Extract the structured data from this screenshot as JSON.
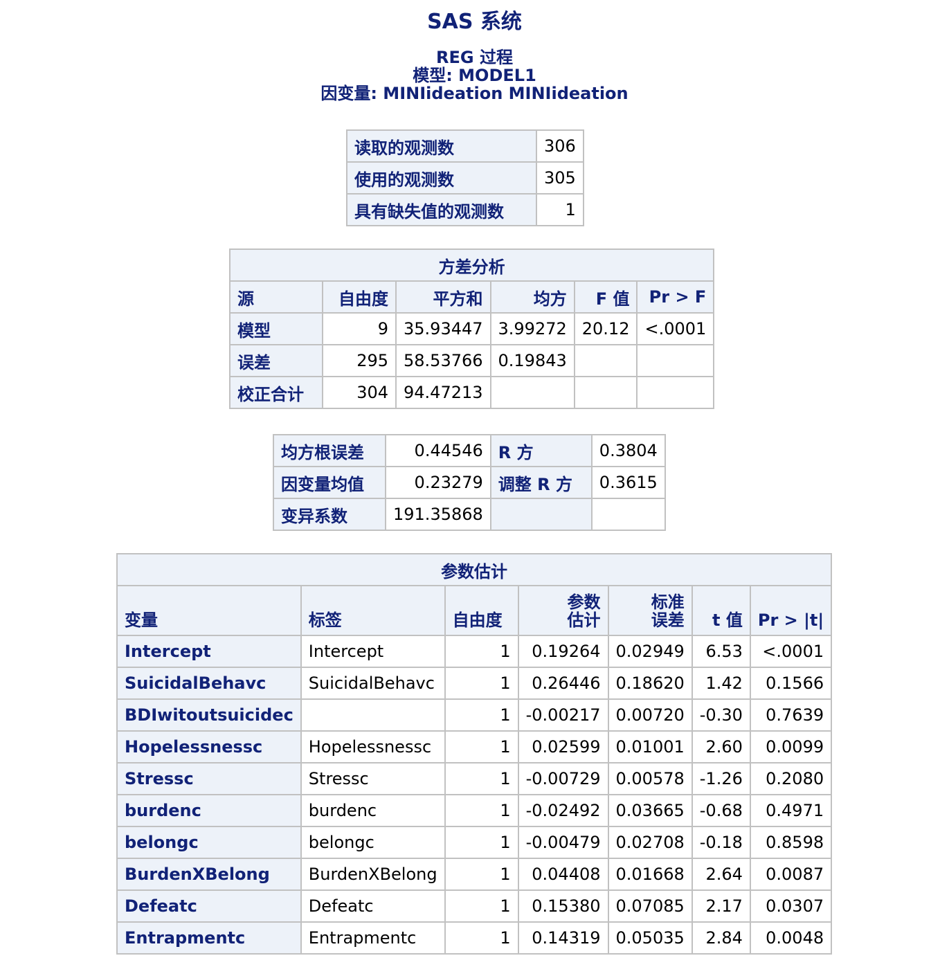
{
  "title": "SAS 系统",
  "subtitle1": "REG 过程",
  "subtitle2": "模型: MODEL1",
  "subtitle3": "因变量: MINIideation MINIideation",
  "obs": {
    "rows": [
      {
        "label": "读取的观测数",
        "value": "306"
      },
      {
        "label": "使用的观测数",
        "value": "305"
      },
      {
        "label": "具有缺失值的观测数",
        "value": "1"
      }
    ]
  },
  "anova": {
    "caption": "方差分析",
    "headers": [
      "源",
      "自由度",
      "平方和",
      "均方",
      "F 值",
      "Pr > F"
    ],
    "rows": [
      [
        "模型",
        "9",
        "35.93447",
        "3.99272",
        "20.12",
        "<.0001"
      ],
      [
        "误差",
        "295",
        "58.53766",
        "0.19843",
        "",
        ""
      ],
      [
        "校正合计",
        "304",
        "94.47213",
        "",
        "",
        ""
      ]
    ]
  },
  "fit": {
    "rows": [
      [
        "均方根误差",
        "0.44546",
        "R 方",
        "0.3804"
      ],
      [
        "因变量均值",
        "0.23279",
        "调整 R 方",
        "0.3615"
      ],
      [
        "变异系数",
        "191.35868",
        "",
        ""
      ]
    ]
  },
  "params": {
    "caption": "参数估计",
    "headers": {
      "variable": "变量",
      "label": "标签",
      "df": "自由度",
      "estimate_line1": "参数",
      "estimate_line2": "估计",
      "stderr_line1": "标准",
      "stderr_line2": "误差",
      "t": "t 值",
      "p": "Pr > |t|"
    },
    "rows": [
      [
        "Intercept",
        "Intercept",
        "1",
        "0.19264",
        "0.02949",
        "6.53",
        "<.0001"
      ],
      [
        "SuicidalBehavc",
        "SuicidalBehavc",
        "1",
        "0.26446",
        "0.18620",
        "1.42",
        "0.1566"
      ],
      [
        "BDIwitoutsuicidec",
        "",
        "1",
        "-0.00217",
        "0.00720",
        "-0.30",
        "0.7639"
      ],
      [
        "Hopelessnessc",
        "Hopelessnessc",
        "1",
        "0.02599",
        "0.01001",
        "2.60",
        "0.0099"
      ],
      [
        "Stressc",
        "Stressc",
        "1",
        "-0.00729",
        "0.00578",
        "-1.26",
        "0.2080"
      ],
      [
        "burdenc",
        "burdenc",
        "1",
        "-0.02492",
        "0.03665",
        "-0.68",
        "0.4971"
      ],
      [
        "belongc",
        "belongc",
        "1",
        "-0.00479",
        "0.02708",
        "-0.18",
        "0.8598"
      ],
      [
        "BurdenXBelong",
        "BurdenXBelong",
        "1",
        "0.04408",
        "0.01668",
        "2.64",
        "0.0087"
      ],
      [
        "Defeatc",
        "Defeatc",
        "1",
        "0.15380",
        "0.07085",
        "2.17",
        "0.0307"
      ],
      [
        "Entrapmentc",
        "Entrapmentc",
        "1",
        "0.14319",
        "0.05035",
        "2.84",
        "0.0048"
      ]
    ]
  }
}
